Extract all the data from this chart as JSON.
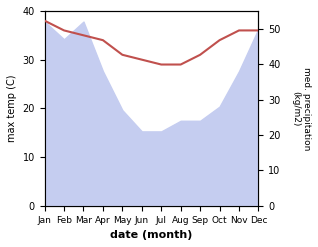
{
  "months": [
    "Jan",
    "Feb",
    "Mar",
    "Apr",
    "May",
    "Jun",
    "Jul",
    "Aug",
    "Sep",
    "Oct",
    "Nov",
    "Dec"
  ],
  "temperature": [
    38,
    36,
    35,
    34,
    31,
    30,
    29,
    29,
    31,
    34,
    36,
    36
  ],
  "precipitation": [
    52,
    47,
    52,
    38,
    27,
    21,
    21,
    24,
    24,
    28,
    38,
    50
  ],
  "temp_color": "#c0504d",
  "precip_fill_color": "#c5cdf0",
  "ylabel_left": "max temp (C)",
  "ylabel_right": "med. precipitation\n(kg/m2)",
  "xlabel": "date (month)",
  "ylim_left": [
    0,
    40
  ],
  "ylim_right": [
    0,
    55
  ],
  "yticks_left": [
    0,
    10,
    20,
    30,
    40
  ],
  "yticks_right": [
    0,
    10,
    20,
    30,
    40,
    50
  ],
  "figsize": [
    3.18,
    2.47
  ],
  "dpi": 100
}
